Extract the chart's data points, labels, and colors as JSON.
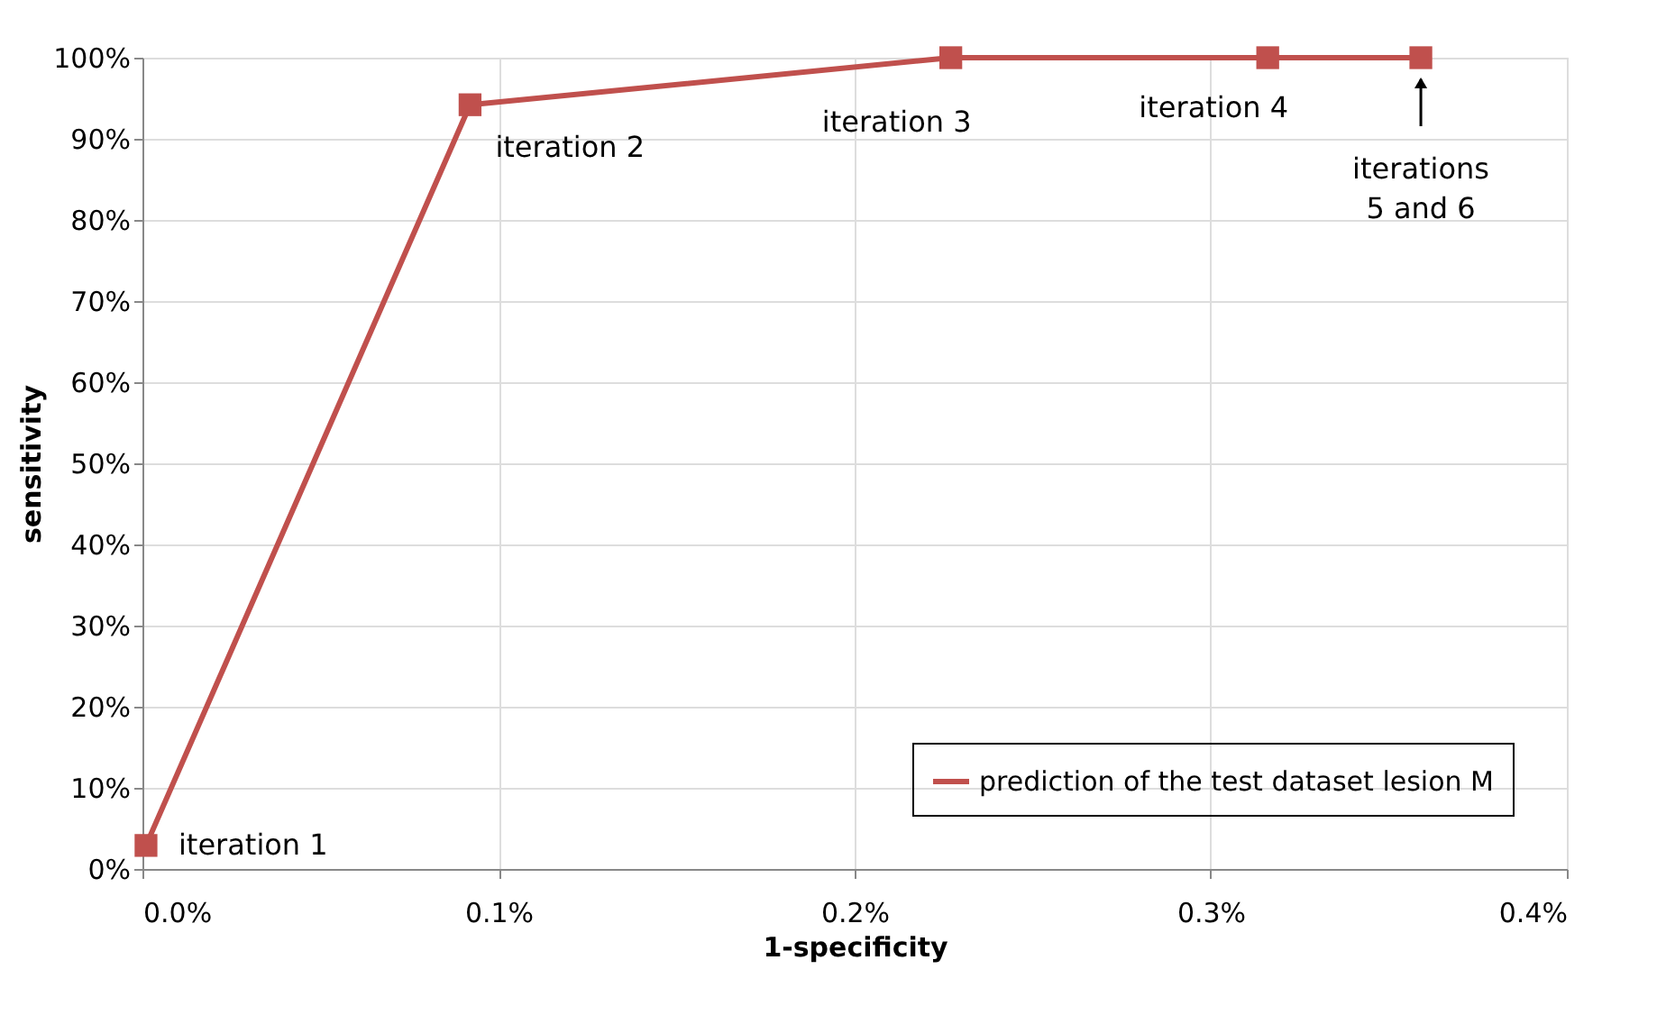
{
  "chart_data": {
    "type": "line",
    "xlabel": "1-specificity",
    "ylabel": "sensitivity",
    "x": [
      0.001,
      0.092,
      0.227,
      0.316,
      0.359
    ],
    "series": [
      {
        "name": "prediction of the test dataset lesion M",
        "color": "#c0504d",
        "values": [
          2.9,
          94.2,
          100,
          100,
          100
        ]
      }
    ],
    "xlim": [
      0,
      0.4
    ],
    "xticks": [
      {
        "value": 0,
        "label": "0.0%"
      },
      {
        "value": 0.1,
        "label": "0.1%"
      },
      {
        "value": 0.2,
        "label": "0.2%"
      },
      {
        "value": 0.3,
        "label": "0.3%"
      },
      {
        "value": 0.4,
        "label": "0.4%"
      }
    ],
    "ylim": [
      0,
      100
    ],
    "yticks": [
      {
        "value": 0,
        "label": "0%"
      },
      {
        "value": 10,
        "label": "10%"
      },
      {
        "value": 20,
        "label": "20%"
      },
      {
        "value": 30,
        "label": "30%"
      },
      {
        "value": 40,
        "label": "40%"
      },
      {
        "value": 50,
        "label": "50%"
      },
      {
        "value": 60,
        "label": "60%"
      },
      {
        "value": 70,
        "label": "70%"
      },
      {
        "value": 80,
        "label": "80%"
      },
      {
        "value": 90,
        "label": "90%"
      },
      {
        "value": 100,
        "label": "100%"
      }
    ],
    "annotations": [
      {
        "text": "iteration 1",
        "x": 0.001,
        "y": 2.9
      },
      {
        "text": "iteration 2",
        "x": 0.092,
        "y": 94.2
      },
      {
        "text": "iteration 3",
        "x": 0.227,
        "y": 100
      },
      {
        "text": "iteration 4",
        "x": 0.316,
        "y": 100
      },
      "iterations 5 and 6"
    ],
    "grid": true,
    "legend": "bottom right",
    "marker": "square",
    "line_style": "solid"
  }
}
